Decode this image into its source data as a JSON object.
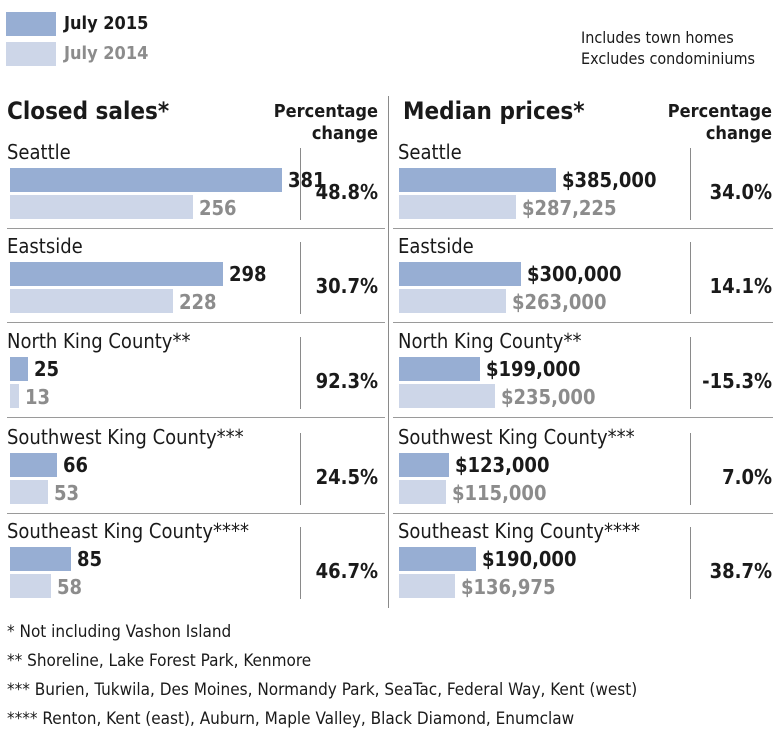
{
  "legend": {
    "current": {
      "label": "July 2015",
      "color": "#97aed3"
    },
    "previous": {
      "label": "July 2014",
      "color": "#cdd6e8"
    }
  },
  "notes": [
    "Includes town homes",
    "Excludes condominiums"
  ],
  "chart_data": [
    {
      "type": "bar",
      "title": "Closed sales*",
      "change_header": "Percentage change",
      "categories": [
        "Seattle",
        "Eastside",
        "North King County**",
        "Southwest King County***",
        "Southeast King County****"
      ],
      "series": [
        {
          "name": "July 2015",
          "values": [
            381,
            298,
            25,
            66,
            85
          ]
        },
        {
          "name": "July 2014",
          "values": [
            256,
            228,
            13,
            53,
            58
          ]
        }
      ],
      "labels_2015": [
        "381",
        "298",
        "25",
        "66",
        "85"
      ],
      "labels_2014": [
        "256",
        "228",
        "13",
        "53",
        "58"
      ],
      "percent_change": [
        "48.8%",
        "30.7%",
        "92.3%",
        "24.5%",
        "46.7%"
      ],
      "max_value": 381
    },
    {
      "type": "bar",
      "title": "Median prices*",
      "change_header": "Percentage change",
      "categories": [
        "Seattle",
        "Eastside",
        "North King County**",
        "Southwest King County***",
        "Southeast King County****"
      ],
      "series": [
        {
          "name": "July 2015",
          "values": [
            385000,
            300000,
            199000,
            123000,
            190000
          ]
        },
        {
          "name": "July 2014",
          "values": [
            287225,
            263000,
            235000,
            115000,
            136975
          ]
        }
      ],
      "labels_2015": [
        "$385,000",
        "$300,000",
        "$199,000",
        "$123,000",
        "$190,000"
      ],
      "labels_2014": [
        "$287,225",
        "$263,000",
        "$235,000",
        "$115,000",
        "$136,975"
      ],
      "percent_change": [
        "34.0%",
        "14.1%",
        "-15.3%",
        "7.0%",
        "38.7%"
      ],
      "max_value": 385000
    }
  ],
  "footnotes": [
    "* Not including Vashon Island",
    "** Shoreline, Lake Forest Park, Kenmore",
    "*** Burien, Tukwila, Des Moines, Normandy Park, SeaTac, Federal Way, Kent (west)",
    "**** Renton, Kent (east), Auburn, Maple Valley, Black Diamond, Enumclaw"
  ]
}
